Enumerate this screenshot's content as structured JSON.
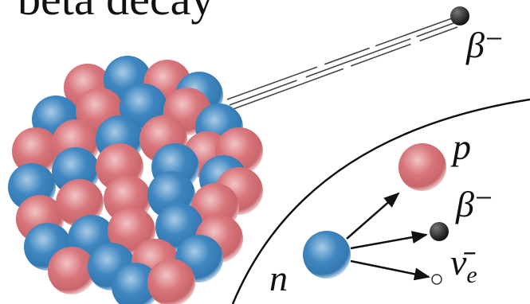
{
  "title": "beta decay",
  "labels": {
    "beta_emitted": "β⁻",
    "proton": "p",
    "beta": "β⁻",
    "neutron": "n",
    "antineutrino": "ν̄",
    "antineutrino_subscript": "e"
  }
}
